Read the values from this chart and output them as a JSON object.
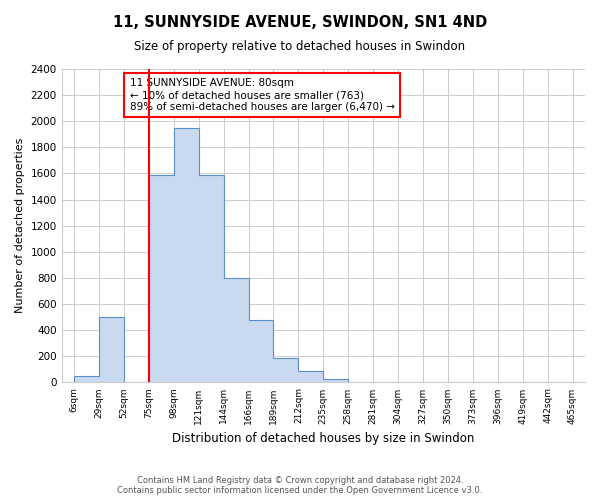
{
  "title": "11, SUNNYSIDE AVENUE, SWINDON, SN1 4ND",
  "subtitle": "Size of property relative to detached houses in Swindon",
  "xlabel": "Distribution of detached houses by size in Swindon",
  "ylabel": "Number of detached properties",
  "bin_labels": [
    "6sqm",
    "29sqm",
    "52sqm",
    "75sqm",
    "98sqm",
    "121sqm",
    "144sqm",
    "166sqm",
    "189sqm",
    "212sqm",
    "235sqm",
    "258sqm",
    "281sqm",
    "304sqm",
    "327sqm",
    "350sqm",
    "373sqm",
    "396sqm",
    "419sqm",
    "442sqm",
    "465sqm"
  ],
  "bar_heights": [
    50,
    500,
    0,
    1590,
    1950,
    1590,
    800,
    480,
    190,
    90,
    30,
    0,
    0,
    0,
    0,
    0,
    0,
    0,
    0,
    0,
    0
  ],
  "bar_color": "#c9d9f0",
  "bar_edge_color": "#5b8fcc",
  "vline_index": 3,
  "vline_color": "red",
  "annotation_text": "11 SUNNYSIDE AVENUE: 80sqm\n← 10% of detached houses are smaller (763)\n89% of semi-detached houses are larger (6,470) →",
  "annotation_box_color": "white",
  "annotation_box_edge_color": "red",
  "ylim": [
    0,
    2400
  ],
  "yticks": [
    0,
    200,
    400,
    600,
    800,
    1000,
    1200,
    1400,
    1600,
    1800,
    2000,
    2200,
    2400
  ],
  "footer_line1": "Contains HM Land Registry data © Crown copyright and database right 2024.",
  "footer_line2": "Contains public sector information licensed under the Open Government Licence v3.0.",
  "bg_color": "#ffffff",
  "grid_color": "#cccccc"
}
